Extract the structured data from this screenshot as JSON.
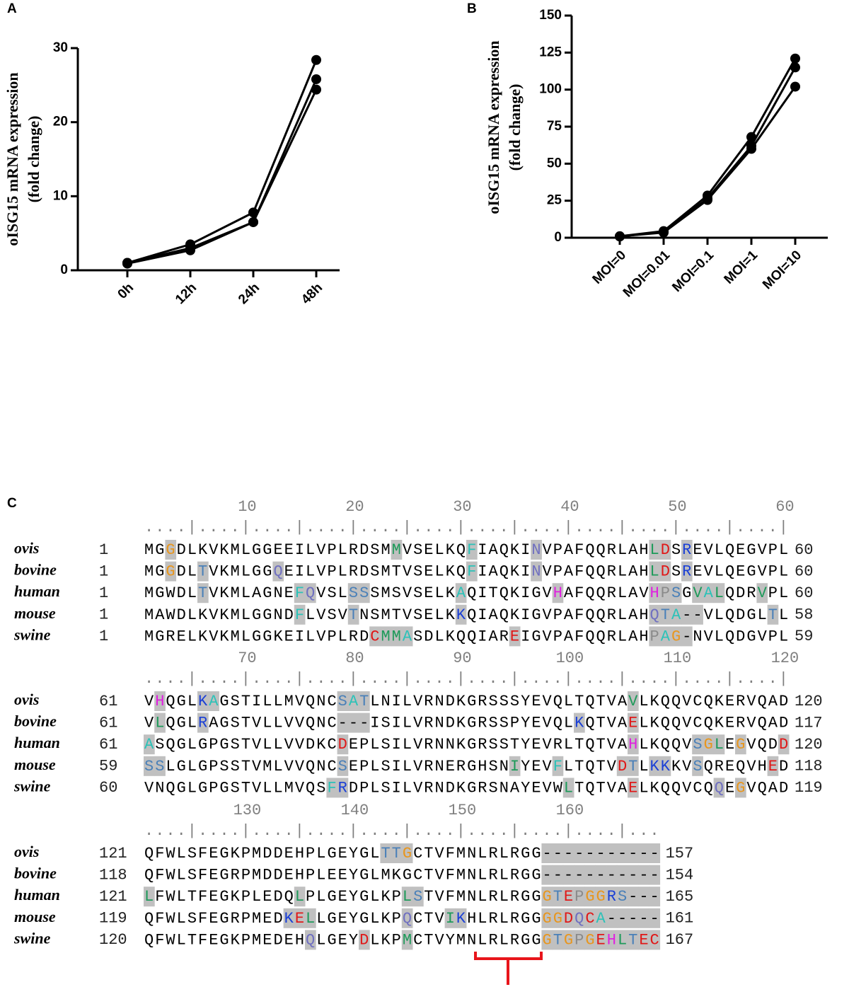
{
  "chart_data": [
    {
      "type": "line",
      "panel": "A",
      "ylabel": [
        "oISG15  mRNA expression",
        "(fold change)"
      ],
      "categories": [
        "0h",
        "12h",
        "24h",
        "48h"
      ],
      "series": [
        {
          "color": "#000000",
          "values": [
            1,
            3.5,
            7.8,
            28.4
          ]
        },
        {
          "color": "#000000",
          "values": [
            1,
            3.0,
            6.5,
            25.8
          ]
        },
        {
          "color": "#000000",
          "values": [
            0.9,
            2.7,
            6.5,
            24.4
          ]
        }
      ],
      "ylim": [
        0,
        30
      ],
      "yticks": [
        0,
        10,
        20,
        30
      ],
      "marker": "circle"
    },
    {
      "type": "line",
      "panel": "B",
      "ylabel": [
        "oISG15  mRNA expression",
        "(fold change)"
      ],
      "categories": [
        "MOI=0",
        "MOI=0.01",
        "MOI=0.1",
        "MOI=1",
        "MOI=10"
      ],
      "series": [
        {
          "color": "#000000",
          "values": [
            1,
            4.5,
            28.5,
            68,
            121
          ]
        },
        {
          "color": "#000000",
          "values": [
            0.8,
            4,
            26.5,
            62,
            115
          ]
        },
        {
          "color": "#000000",
          "values": [
            1,
            3.5,
            25.5,
            60,
            102
          ]
        }
      ],
      "ylim": [
        0,
        150
      ],
      "yticks": [
        0,
        25,
        50,
        75,
        100,
        125,
        150
      ],
      "marker": "circle"
    }
  ],
  "alignment": {
    "panel": "C",
    "shade_color": "#c0c0c0",
    "bracket_color": "#e8151b",
    "residue_colors": {
      "G": "#e8961e",
      "M": "#1e9a5a",
      "L": "#1e9a5a",
      "V": "#1e9a5a",
      "I": "#1e9a5a",
      "F": "#2cc2b8",
      "A": "#2cc2b8",
      "W": "#2cc2b8",
      "N": "#7070c0",
      "Q": "#7070c0",
      "K": "#1a3fd6",
      "R": "#1a3fd6",
      "D": "#e01818",
      "E": "#e01818",
      "C": "#e01818",
      "H": "#e020e0",
      "S": "#4a80b8",
      "T": "#4a80b8",
      "P": "#8a8a8a"
    },
    "blocks": [
      {
        "ruler": [
          10,
          20,
          30,
          40,
          50,
          60
        ],
        "rows": [
          {
            "name": "ovis",
            "start": 1,
            "seq": "MGGDLKVKMLGGEEILVPLRDSMMVSELKQFIAQKINVPAFQQRLAHLDSREVLQEGVPL",
            "end": 60,
            "shaded": [
              2,
              23,
              30,
              36,
              47,
              48,
              50
            ]
          },
          {
            "name": "bovine",
            "start": 1,
            "seq": "MGGDLTVKMLGGQEILVPLRDSMTVSELKQFIAQKINVPAFQQRLAHLDSREVLQEGVPL",
            "end": 60,
            "shaded": [
              2,
              5,
              12,
              30,
              36,
              47,
              48,
              50
            ]
          },
          {
            "name": "human",
            "start": 1,
            "seq": "MGWDLTVKMLAGNEFQVSLSSSMSVSELKAQITQKIGVHAFQQRLAVHPSGVALQDRVPL",
            "end": 60,
            "shaded": [
              5,
              14,
              15,
              19,
              20,
              29,
              38,
              47,
              48,
              49,
              51,
              52,
              53,
              57
            ]
          },
          {
            "name": "mouse",
            "start": 1,
            "seq": "MAWDLKVKMLGGNDFLVSVTNSMTVSELKKQIAQKIGVPAFQQRLAHQTA--VLQDGLTL",
            "end": 58,
            "shaded": [
              14,
              19,
              29,
              47,
              48,
              49,
              50,
              51,
              58
            ]
          },
          {
            "name": "swine",
            "start": 1,
            "seq": "MGRELKVKMLGGKEILVPLRDCMMASDLKQQIAREIGVPAFQQRLAHPAG-NVLQDGVPL",
            "end": 59,
            "shaded": [
              21,
              22,
              23,
              24,
              34,
              47,
              48,
              49,
              50
            ]
          }
        ]
      },
      {
        "ruler": [
          70,
          80,
          90,
          100,
          110,
          120
        ],
        "rows": [
          {
            "name": "ovis",
            "start": 61,
            "seq": "VHQGLKAGSTILLMVQNCSATLNILVRNDKGRSSSYEVQLTQTVAVLKQQVCQKERVQAD",
            "end": 120,
            "shaded": [
              1,
              5,
              6,
              18,
              19,
              20,
              45
            ]
          },
          {
            "name": "bovine",
            "start": 61,
            "seq": "VLQGLRAGSTVLLVVQNC---ISILVRNDKGRSSPYEVQLKQTVAELKQQVCQKERVQAD",
            "end": 117,
            "shaded": [
              1,
              5,
              18,
              19,
              20,
              40,
              45
            ]
          },
          {
            "name": "human",
            "start": 61,
            "seq": "ASQGLGPGSTVLLVVDKCDEPLSILVRNNKGRSSTYEVRLTQTVAHLKQQVSGLEGVQDD",
            "end": 120,
            "shaded": [
              0,
              18,
              45,
              51,
              52,
              53,
              55,
              59
            ]
          },
          {
            "name": "mouse",
            "start": 59,
            "seq": "SSLGLGPSSTVMLVVQNCSEPLSILVRNERGHSNIYEVFLTQTVDTLKKKVSQREQVHED",
            "end": 118,
            "shaded": [
              0,
              1,
              18,
              34,
              38,
              44,
              45,
              47,
              48,
              51,
              58
            ]
          },
          {
            "name": "swine",
            "start": 60,
            "seq": "VNQGLGPGSTVLLMVQSFRDPLSILVRNDKGRSNAYEVWLTQTVAELKQQVCQQEGVQAD",
            "end": 119,
            "shaded": [
              17,
              18,
              39,
              45,
              53,
              55
            ]
          }
        ]
      },
      {
        "ruler": [
          130,
          140,
          150,
          160
        ],
        "rows": [
          {
            "name": "ovis",
            "start": 121,
            "seq": "QFWLSFEGKPMDDEHPLGEYGLTTGCTVFMNLRLRGG-----------",
            "end": 157,
            "shaded": [
              22,
              23,
              24,
              37,
              38,
              39,
              40,
              41,
              42,
              43,
              44,
              45,
              46,
              47
            ]
          },
          {
            "name": "bovine",
            "start": 118,
            "seq": "QFWLSFEGRPMDDEHPLEEYGLMKGCTVFMNLRLRGG-----------",
            "end": 154,
            "shaded": [
              37,
              38,
              39,
              40,
              41,
              42,
              43,
              44,
              45,
              46,
              47
            ]
          },
          {
            "name": "human",
            "start": 121,
            "seq": "LFWLTFEGKPLEDQLPLGEYGLKPLSTVFMNLRLRGGGTEPGGRS---",
            "end": 165,
            "shaded": [
              0,
              14,
              24,
              25,
              37,
              38,
              39,
              40,
              41,
              42,
              43,
              44,
              45,
              46,
              47
            ]
          },
          {
            "name": "mouse",
            "start": 119,
            "seq": "QFWLSFEGRPMEDKELLGEYGLKPQCTVIKHLRLRGGGGDQCA-----",
            "end": 161,
            "shaded": [
              13,
              14,
              15,
              24,
              28,
              29,
              37,
              38,
              39,
              40,
              41,
              42,
              43,
              44,
              45,
              46,
              47
            ]
          },
          {
            "name": "swine",
            "start": 120,
            "seq": "QFWLTFEGKPMEDEHQLGEYDLKPMCTVYMNLRLRGGGTGPGEHLTEC",
            "end": 167,
            "shaded": [
              15,
              20,
              24,
              37,
              38,
              39,
              40,
              41,
              42,
              43,
              44,
              45,
              46,
              47
            ]
          }
        ]
      }
    ]
  }
}
